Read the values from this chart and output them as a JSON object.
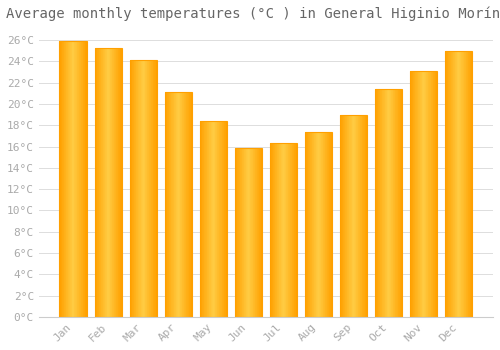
{
  "title": "Average monthly temperatures (°C ) in General Higinio Morínigo",
  "months": [
    "Jan",
    "Feb",
    "Mar",
    "Apr",
    "May",
    "Jun",
    "Jul",
    "Aug",
    "Sep",
    "Oct",
    "Nov",
    "Dec"
  ],
  "values": [
    25.9,
    25.3,
    24.1,
    21.1,
    18.4,
    15.9,
    16.3,
    17.4,
    19.0,
    21.4,
    23.1,
    25.0
  ],
  "bar_color_center": "#FFCC44",
  "bar_color_edge": "#FFA000",
  "background_color": "#FFFFFF",
  "grid_color": "#DDDDDD",
  "ylim": [
    0,
    27
  ],
  "ytick_max": 26,
  "ytick_step": 2,
  "title_fontsize": 10,
  "tick_fontsize": 8,
  "tick_label_color": "#AAAAAA",
  "title_color": "#666666"
}
